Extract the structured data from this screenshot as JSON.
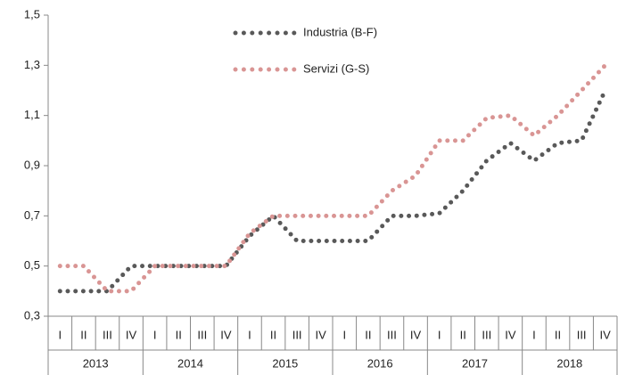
{
  "chart_data": {
    "type": "line",
    "categories": [
      "I",
      "II",
      "III",
      "IV",
      "I",
      "II",
      "III",
      "IV",
      "I",
      "II",
      "III",
      "IV",
      "I",
      "II",
      "III",
      "IV",
      "I",
      "II",
      "III",
      "IV",
      "I",
      "II",
      "III",
      "IV"
    ],
    "years": [
      "2013",
      "2014",
      "2015",
      "2016",
      "2017",
      "2018"
    ],
    "series": [
      {
        "name": "Industria (B-F)",
        "color": "#595959",
        "values": [
          0.4,
          0.4,
          0.4,
          0.5,
          0.5,
          0.5,
          0.5,
          0.5,
          0.62,
          0.7,
          0.6,
          0.6,
          0.6,
          0.6,
          0.7,
          0.7,
          0.71,
          0.8,
          0.92,
          0.99,
          0.92,
          0.99,
          1.0,
          1.2
        ]
      },
      {
        "name": "Servizi (G-S)",
        "color": "#d99594",
        "values": [
          0.5,
          0.5,
          0.4,
          0.4,
          0.5,
          0.5,
          0.5,
          0.5,
          0.63,
          0.7,
          0.7,
          0.7,
          0.7,
          0.7,
          0.8,
          0.86,
          1.0,
          1.0,
          1.09,
          1.1,
          1.02,
          1.1,
          1.2,
          1.3
        ]
      }
    ],
    "ylim": [
      0.3,
      1.5
    ],
    "yticks": [
      {
        "value": 0.3,
        "label": "0,3"
      },
      {
        "value": 0.5,
        "label": "0,5"
      },
      {
        "value": 0.7,
        "label": "0,7"
      },
      {
        "value": 0.9,
        "label": "0,9"
      },
      {
        "value": 1.1,
        "label": "1,1"
      },
      {
        "value": 1.3,
        "label": "1,3"
      },
      {
        "value": 1.5,
        "label": "1,5"
      }
    ],
    "grid": false
  }
}
